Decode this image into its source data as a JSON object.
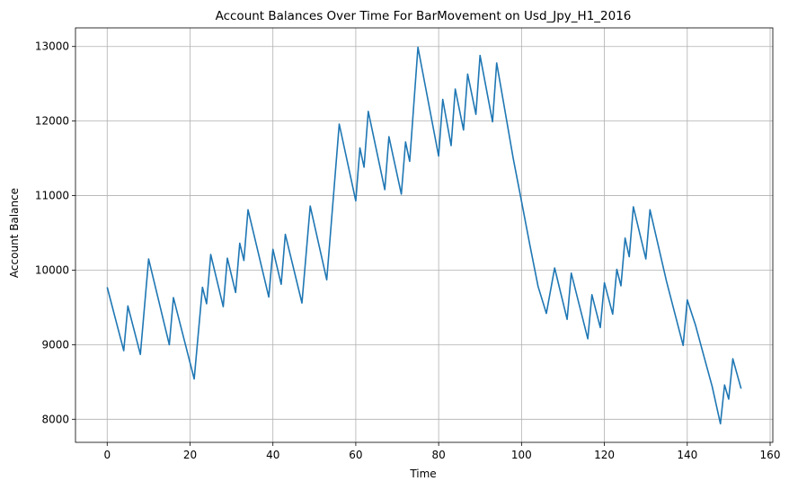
{
  "chart_data": {
    "type": "line",
    "title": "Account Balances Over Time For BarMovement on Usd_Jpy_H1_2016",
    "xlabel": "Time",
    "ylabel": "Account Balance",
    "xlim": [
      -7.65,
      160.65
    ],
    "ylim": [
      7690,
      13250
    ],
    "xticks": [
      0,
      20,
      40,
      60,
      80,
      100,
      120,
      140,
      160
    ],
    "yticks": [
      8000,
      9000,
      10000,
      11000,
      12000,
      13000
    ],
    "grid": true,
    "line_color": "#1f77b4",
    "series": [
      {
        "x": [
          0,
          4,
          5,
          8,
          10,
          15,
          16,
          21,
          23,
          24,
          25,
          28,
          29,
          31,
          32,
          33,
          34,
          39,
          40,
          42,
          43,
          47,
          49,
          53,
          56,
          60,
          61,
          62,
          63,
          67,
          68,
          71,
          72,
          73,
          75,
          80,
          81,
          83,
          84,
          86,
          87,
          89,
          90,
          93,
          94,
          96,
          98,
          100,
          102,
          104,
          106,
          108,
          111,
          112,
          116,
          117,
          119,
          120,
          122,
          123,
          124,
          125,
          126,
          127,
          130,
          131,
          135,
          139,
          140,
          142,
          144,
          146,
          148,
          149,
          150,
          151,
          153
        ],
        "y": [
          9770,
          8920,
          9520,
          8870,
          10150,
          9000,
          9630,
          8540,
          9770,
          9550,
          10210,
          9510,
          10160,
          9700,
          10360,
          10130,
          10810,
          9640,
          10280,
          9810,
          10480,
          9560,
          10860,
          9870,
          11960,
          10930,
          11640,
          11380,
          12130,
          11080,
          11790,
          11020,
          11720,
          11460,
          12990,
          11530,
          12290,
          11670,
          12430,
          11880,
          12630,
          12090,
          12880,
          11990,
          12780,
          12140,
          11500,
          10920,
          10340,
          9780,
          9420,
          10030,
          9340,
          9960,
          9080,
          9670,
          9230,
          9830,
          9410,
          10010,
          9790,
          10430,
          10180,
          10850,
          10150,
          10810,
          9850,
          8990,
          9600,
          9260,
          8850,
          8440,
          7940,
          8460,
          8270,
          8810,
          8410
        ]
      }
    ]
  }
}
